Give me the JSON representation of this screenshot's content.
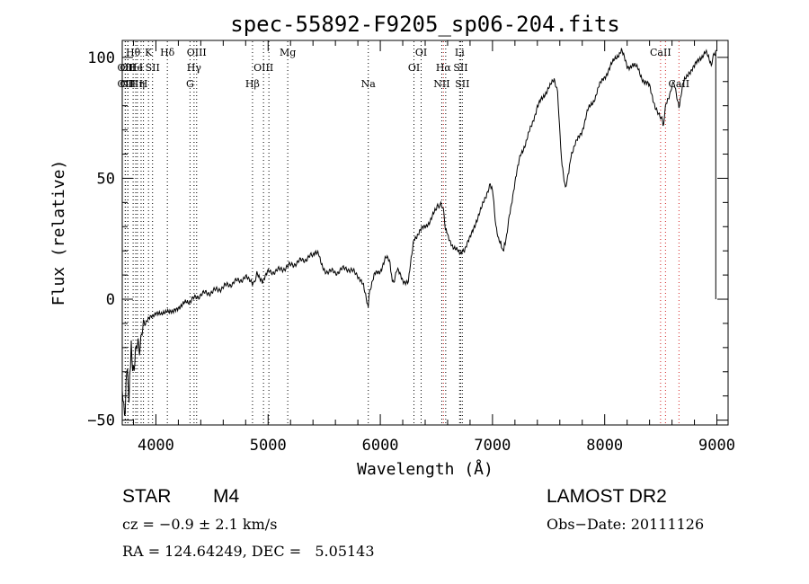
{
  "chart_data": {
    "type": "line",
    "title": "spec-55892-F9205_sp06-204.fits",
    "xlabel": "Wavelength (Å)",
    "ylabel": "Flux (relative)",
    "xlim": [
      3700,
      9100
    ],
    "ylim": [
      -52,
      107
    ],
    "x_ticks": [
      4000,
      5000,
      6000,
      7000,
      8000,
      9000
    ],
    "y_ticks": [
      -50,
      0,
      50,
      100
    ],
    "grid": false,
    "series": [
      {
        "x": [
          3700,
          3720,
          3740,
          3760,
          3780,
          3800,
          3830,
          3860,
          3900,
          3950,
          4000,
          4050,
          4100,
          4150,
          4200,
          4250,
          4300,
          4400,
          4500,
          4600,
          4700,
          4800,
          4860,
          4900,
          4950,
          5000,
          5100,
          5200,
          5300,
          5400,
          5450,
          5500,
          5600,
          5700,
          5800,
          5850,
          5893,
          5900,
          5950,
          6000,
          6050,
          6080,
          6100,
          6120,
          6150,
          6200,
          6250,
          6300,
          6350,
          6400,
          6450,
          6500,
          6540,
          6563,
          6580,
          6600,
          6650,
          6700,
          6720,
          6750,
          6800,
          6850,
          6900,
          6950,
          6980,
          7000,
          7030,
          7060,
          7080,
          7100,
          7120,
          7150,
          7200,
          7250,
          7300,
          7350,
          7400,
          7450,
          7500,
          7550,
          7580,
          7620,
          7650,
          7680,
          7700,
          7750,
          7800,
          7850,
          7900,
          7950,
          8000,
          8050,
          8100,
          8150,
          8200,
          8250,
          8300,
          8350,
          8400,
          8450,
          8498,
          8520,
          8542,
          8580,
          8620,
          8662,
          8700,
          8750,
          8800,
          8850,
          8900,
          8950,
          8990
        ],
        "y": [
          -40,
          -48,
          -30,
          -38,
          -22,
          -28,
          -15,
          -18,
          -10,
          -8,
          -5,
          -7,
          -4,
          -6,
          -3,
          -2,
          -1,
          2,
          3,
          5,
          7,
          9,
          6,
          10,
          8,
          11,
          12,
          14,
          16,
          18,
          19,
          12,
          11,
          13,
          10,
          5,
          -4,
          3,
          10,
          12,
          17,
          16,
          10,
          6,
          12,
          8,
          7,
          25,
          28,
          30,
          33,
          37,
          40,
          36,
          30,
          26,
          22,
          19,
          20,
          21,
          25,
          32,
          37,
          44,
          48,
          45,
          30,
          24,
          22,
          20,
          25,
          35,
          48,
          60,
          65,
          72,
          80,
          83,
          88,
          90,
          85,
          55,
          45,
          52,
          60,
          65,
          70,
          78,
          82,
          88,
          92,
          96,
          100,
          103,
          96,
          97,
          95,
          90,
          88,
          80,
          76,
          72,
          79,
          85,
          90,
          80,
          89,
          94,
          96,
          100,
          102,
          97,
          103
        ]
      }
    ],
    "lines": [
      {
        "x": 3727,
        "row": 1,
        "label": "OII",
        "color": "#000000"
      },
      {
        "x": 3727,
        "row": 2,
        "label": "OII",
        "color": "#000000"
      },
      {
        "x": 3750,
        "row": 1,
        "label": "OII",
        "color": "#000000"
      },
      {
        "x": 3750,
        "row": 2,
        "label": "OII",
        "color": "#000000"
      },
      {
        "x": 3797,
        "row": 0,
        "label": "Hθ",
        "color": "#000000"
      },
      {
        "x": 3820,
        "row": 1,
        "label": "He",
        "color": "#000000"
      },
      {
        "x": 3835,
        "row": 2,
        "label": "Hη",
        "color": "#000000"
      },
      {
        "x": 3868,
        "row": 1,
        "label": "I",
        "color": "#000000"
      },
      {
        "x": 3889,
        "row": 2,
        "label": "H",
        "color": "#000000"
      },
      {
        "x": 3934,
        "row": 0,
        "label": "K",
        "color": "#000000"
      },
      {
        "x": 3970,
        "row": 1,
        "label": "SII",
        "color": "#000000"
      },
      {
        "x": 4102,
        "row": 0,
        "label": "Hδ",
        "color": "#000000"
      },
      {
        "x": 4304,
        "row": 2,
        "label": "G",
        "color": "#000000"
      },
      {
        "x": 4340,
        "row": 1,
        "label": "Hγ",
        "color": "#000000"
      },
      {
        "x": 4363,
        "row": 0,
        "label": "OIII",
        "color": "#000000"
      },
      {
        "x": 4861,
        "row": 2,
        "label": "Hβ",
        "color": "#000000"
      },
      {
        "x": 4959,
        "row": 1,
        "label": "OIII",
        "color": "#000000"
      },
      {
        "x": 5007,
        "row": -1,
        "label": "",
        "color": "#000000"
      },
      {
        "x": 5175,
        "row": 0,
        "label": "Mg",
        "color": "#000000"
      },
      {
        "x": 5893,
        "row": 2,
        "label": "Na",
        "color": "#000000"
      },
      {
        "x": 6300,
        "row": 1,
        "label": "OI",
        "color": "#000000"
      },
      {
        "x": 6364,
        "row": 0,
        "label": "OI",
        "color": "#000000"
      },
      {
        "x": 6548,
        "row": 2,
        "label": "NII",
        "color": "#000000"
      },
      {
        "x": 6563,
        "row": 1,
        "label": "Hα",
        "color": "#d22020"
      },
      {
        "x": 6583,
        "row": -1,
        "label": "",
        "color": "#000000"
      },
      {
        "x": 6707,
        "row": 0,
        "label": "Li",
        "color": "#000000"
      },
      {
        "x": 6716,
        "row": 1,
        "label": "SII",
        "color": "#000000"
      },
      {
        "x": 6731,
        "row": 2,
        "label": "SII",
        "color": "#000000"
      },
      {
        "x": 8498,
        "row": 0,
        "label": "CaII",
        "color": "#d22020"
      },
      {
        "x": 8542,
        "row": -1,
        "label": "",
        "color": "#d22020"
      },
      {
        "x": 8662,
        "row": 2,
        "label": "CaII",
        "color": "#d22020"
      }
    ]
  },
  "info": {
    "class_label": "STAR",
    "subclass": "M4",
    "survey": "LAMOST DR2",
    "cz": "cz = −0.9 ± 2.1 km/s",
    "obs_date": "Obs−Date: 20111126",
    "coords": "RA = 124.64249, DEC =   5.05143"
  }
}
